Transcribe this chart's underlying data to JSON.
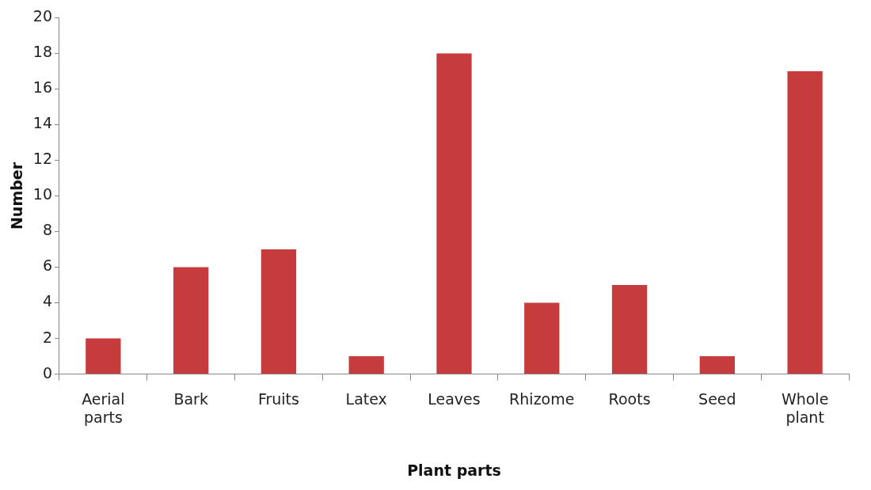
{
  "chart_data": {
    "type": "bar",
    "xlabel": "Plant parts",
    "ylabel": "Number",
    "categories": [
      "Aerial parts",
      "Bark",
      "Fruits",
      "Latex",
      "Leaves",
      "Rhizome",
      "Roots",
      "Seed",
      "Whole plant"
    ],
    "values": [
      2,
      6,
      7,
      1,
      18,
      4,
      5,
      1,
      17
    ],
    "color": "#c63b3b",
    "ylim": [
      0,
      20
    ],
    "yticks": [
      0,
      2,
      4,
      6,
      8,
      10,
      12,
      14,
      16,
      18,
      20
    ],
    "grid": false
  }
}
